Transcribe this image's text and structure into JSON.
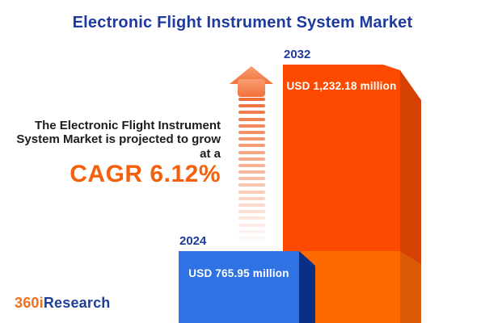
{
  "header": {
    "title": "Electronic Flight Instrument System Market"
  },
  "annotation": {
    "description": "The Electronic Flight Instrument System Market is projected to grow at a",
    "cagr_label": "CAGR 6.12%"
  },
  "chart_data": {
    "type": "bar",
    "title": "Electronic Flight Instrument System Market",
    "unit": "USD million",
    "categories": [
      "2024",
      "2032"
    ],
    "values": [
      765.95,
      1232.18
    ],
    "value_labels": [
      "USD 765.95 million",
      "USD 1,232.18 million"
    ],
    "cagr_percent": 6.12,
    "xlabel": "",
    "ylabel": "",
    "legend": "none",
    "axes_visible": false
  },
  "logo": {
    "part1": "360i",
    "part2": "Research"
  },
  "arrow": {
    "stripe_count": 22
  },
  "colors": {
    "title_blue": "#1e3a9e",
    "cagr_orange": "#f4600c",
    "text_dark": "#1c1c1c",
    "bar2032_front": "#fc4b00",
    "bar2032_side": "#d64104",
    "bar2032_front_lower": "#fc6a00",
    "bar2032_side_lower": "#dc5a04",
    "bar2024_front": "#2e72e4",
    "bar2024_side": "#0a2f87",
    "arrow_orange": "#ef7038",
    "logo_orange": "#f26f1f",
    "logo_blue": "#1f3e97"
  }
}
